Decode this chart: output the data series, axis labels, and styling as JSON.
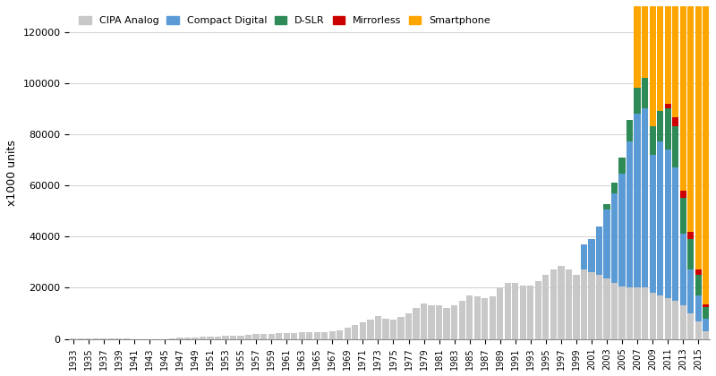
{
  "years": [
    1933,
    1934,
    1935,
    1936,
    1937,
    1938,
    1939,
    1940,
    1941,
    1942,
    1943,
    1944,
    1945,
    1946,
    1947,
    1948,
    1949,
    1950,
    1951,
    1952,
    1953,
    1954,
    1955,
    1956,
    1957,
    1958,
    1959,
    1960,
    1961,
    1962,
    1963,
    1964,
    1965,
    1966,
    1967,
    1968,
    1969,
    1970,
    1971,
    1972,
    1973,
    1974,
    1975,
    1976,
    1977,
    1978,
    1979,
    1980,
    1981,
    1982,
    1983,
    1984,
    1985,
    1986,
    1987,
    1988,
    1989,
    1990,
    1991,
    1992,
    1993,
    1994,
    1995,
    1996,
    1997,
    1998,
    1999,
    2000,
    2001,
    2002,
    2003,
    2004,
    2005,
    2006,
    2007,
    2008,
    2009,
    2010,
    2011,
    2012,
    2013,
    2014,
    2015,
    2016
  ],
  "analog": [
    200,
    250,
    200,
    300,
    350,
    200,
    100,
    50,
    20,
    10,
    10,
    10,
    10,
    300,
    500,
    600,
    700,
    800,
    900,
    1000,
    1100,
    1200,
    1400,
    1600,
    1800,
    1900,
    2000,
    2200,
    2300,
    2400,
    2500,
    2600,
    2700,
    2800,
    3000,
    3500,
    4500,
    5500,
    6500,
    7500,
    9000,
    8000,
    7500,
    8500,
    10000,
    12000,
    14000,
    13000,
    13000,
    12000,
    13000,
    15000,
    17000,
    16500,
    16000,
    16500,
    20000,
    22000,
    22000,
    21000,
    21000,
    22500,
    25000,
    27000,
    28500,
    27000,
    25000,
    27000,
    26000,
    25000,
    23500,
    22000,
    20500,
    20000,
    20000,
    20000,
    18000,
    17000,
    16000,
    15000,
    13000,
    10000,
    7000,
    3000
  ],
  "compact": [
    0,
    0,
    0,
    0,
    0,
    0,
    0,
    0,
    0,
    0,
    0,
    0,
    0,
    0,
    0,
    0,
    0,
    0,
    0,
    0,
    0,
    0,
    0,
    0,
    0,
    0,
    0,
    0,
    0,
    0,
    0,
    0,
    0,
    0,
    0,
    0,
    0,
    0,
    0,
    0,
    0,
    0,
    0,
    0,
    0,
    0,
    0,
    0,
    0,
    0,
    0,
    0,
    0,
    0,
    0,
    0,
    0,
    0,
    0,
    0,
    0,
    0,
    0,
    0,
    0,
    0,
    0,
    10000,
    13000,
    19000,
    27000,
    35000,
    44000,
    57000,
    68000,
    70000,
    54000,
    60000,
    58000,
    52000,
    28000,
    17000,
    10000,
    5000
  ],
  "dslr": [
    0,
    0,
    0,
    0,
    0,
    0,
    0,
    0,
    0,
    0,
    0,
    0,
    0,
    0,
    0,
    0,
    0,
    0,
    0,
    0,
    0,
    0,
    0,
    0,
    0,
    0,
    0,
    0,
    0,
    0,
    0,
    0,
    0,
    0,
    0,
    0,
    0,
    0,
    0,
    0,
    0,
    0,
    0,
    0,
    0,
    0,
    0,
    0,
    0,
    0,
    0,
    0,
    0,
    0,
    0,
    0,
    0,
    0,
    0,
    0,
    0,
    0,
    0,
    0,
    0,
    0,
    0,
    0,
    0,
    0,
    2000,
    4000,
    6500,
    8500,
    10000,
    12000,
    11000,
    12000,
    16000,
    16000,
    14000,
    12000,
    8000,
    4500
  ],
  "mirrorless": [
    0,
    0,
    0,
    0,
    0,
    0,
    0,
    0,
    0,
    0,
    0,
    0,
    0,
    0,
    0,
    0,
    0,
    0,
    0,
    0,
    0,
    0,
    0,
    0,
    0,
    0,
    0,
    0,
    0,
    0,
    0,
    0,
    0,
    0,
    0,
    0,
    0,
    0,
    0,
    0,
    0,
    0,
    0,
    0,
    0,
    0,
    0,
    0,
    0,
    0,
    0,
    0,
    0,
    0,
    0,
    0,
    0,
    0,
    0,
    0,
    0,
    0,
    0,
    0,
    0,
    0,
    0,
    0,
    0,
    0,
    0,
    0,
    0,
    0,
    0,
    0,
    0,
    0,
    2000,
    3500,
    3000,
    3000,
    2000,
    1000
  ],
  "smartphone": [
    0,
    0,
    0,
    0,
    0,
    0,
    0,
    0,
    0,
    0,
    0,
    0,
    0,
    0,
    0,
    0,
    0,
    0,
    0,
    0,
    0,
    0,
    0,
    0,
    0,
    0,
    0,
    0,
    0,
    0,
    0,
    0,
    0,
    0,
    0,
    0,
    0,
    0,
    0,
    0,
    0,
    0,
    0,
    0,
    0,
    0,
    0,
    0,
    0,
    0,
    0,
    0,
    0,
    0,
    0,
    0,
    0,
    0,
    0,
    0,
    0,
    0,
    0,
    0,
    0,
    0,
    0,
    0,
    0,
    0,
    0,
    0,
    3000,
    9000,
    130000,
    130000,
    130000,
    130000,
    130000,
    130000,
    130000,
    130000,
    130000,
    130000
  ],
  "colors": {
    "analog": "#c8c8c8",
    "compact": "#5b9bd5",
    "dslr": "#2e8b57",
    "mirrorless": "#cc0000",
    "smartphone": "#ffa500"
  },
  "ylabel": "x1000 units",
  "ylim": [
    0,
    130000
  ],
  "yticks": [
    0,
    20000,
    40000,
    60000,
    80000,
    100000,
    120000
  ],
  "legend_labels": [
    "CIPA Analog",
    "Compact Digital",
    "D-SLR",
    "Mirrorless",
    "Smartphone"
  ],
  "bg_color": "#ffffff",
  "grid_color": "#c0c0c0"
}
